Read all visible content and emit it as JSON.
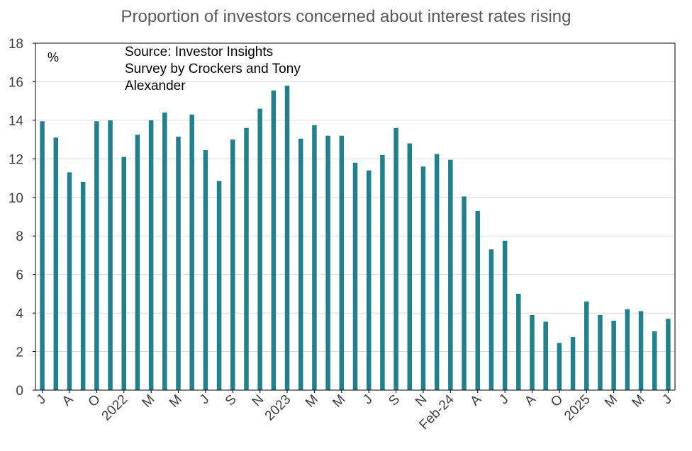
{
  "chart_data": {
    "type": "bar",
    "title": "Proportion of investors concerned about interest rates rising",
    "unit_label": "%",
    "annotation": [
      "Source: Investor Insights",
      "Survey by Crockers and Tony",
      "Alexander"
    ],
    "bar_color": "#21808d",
    "ylim": [
      0,
      18
    ],
    "yticks": [
      0,
      2,
      4,
      6,
      8,
      10,
      12,
      14,
      16,
      18
    ],
    "grid": "horizontal",
    "tick_labels": [
      {
        "i": 0,
        "label": "J"
      },
      {
        "i": 2,
        "label": "A"
      },
      {
        "i": 4,
        "label": "O"
      },
      {
        "i": 6,
        "label": "2022"
      },
      {
        "i": 8,
        "label": "M"
      },
      {
        "i": 10,
        "label": "M"
      },
      {
        "i": 12,
        "label": "J"
      },
      {
        "i": 14,
        "label": "S"
      },
      {
        "i": 16,
        "label": "N"
      },
      {
        "i": 18,
        "label": "2023"
      },
      {
        "i": 20,
        "label": "M"
      },
      {
        "i": 22,
        "label": "M"
      },
      {
        "i": 24,
        "label": "J"
      },
      {
        "i": 26,
        "label": "S"
      },
      {
        "i": 28,
        "label": "N"
      },
      {
        "i": 30,
        "label": "Feb-24"
      },
      {
        "i": 32,
        "label": "A"
      },
      {
        "i": 34,
        "label": "J"
      },
      {
        "i": 36,
        "label": "A"
      },
      {
        "i": 38,
        "label": "O"
      },
      {
        "i": 40,
        "label": "2025"
      },
      {
        "i": 42,
        "label": "M"
      },
      {
        "i": 44,
        "label": "M"
      },
      {
        "i": 46,
        "label": "J"
      }
    ],
    "values": [
      13.95,
      13.1,
      11.3,
      10.8,
      13.95,
      14.0,
      12.1,
      13.25,
      14.0,
      14.4,
      13.15,
      14.3,
      12.45,
      10.85,
      13.0,
      13.6,
      14.6,
      15.55,
      15.8,
      13.05,
      13.75,
      13.2,
      13.2,
      11.8,
      11.4,
      12.2,
      13.6,
      12.8,
      11.6,
      12.25,
      11.95,
      10.05,
      9.3,
      7.3,
      7.75,
      5.0,
      3.9,
      3.55,
      2.45,
      2.75,
      4.6,
      3.9,
      3.6,
      4.2,
      4.1,
      3.05,
      3.7
    ]
  }
}
